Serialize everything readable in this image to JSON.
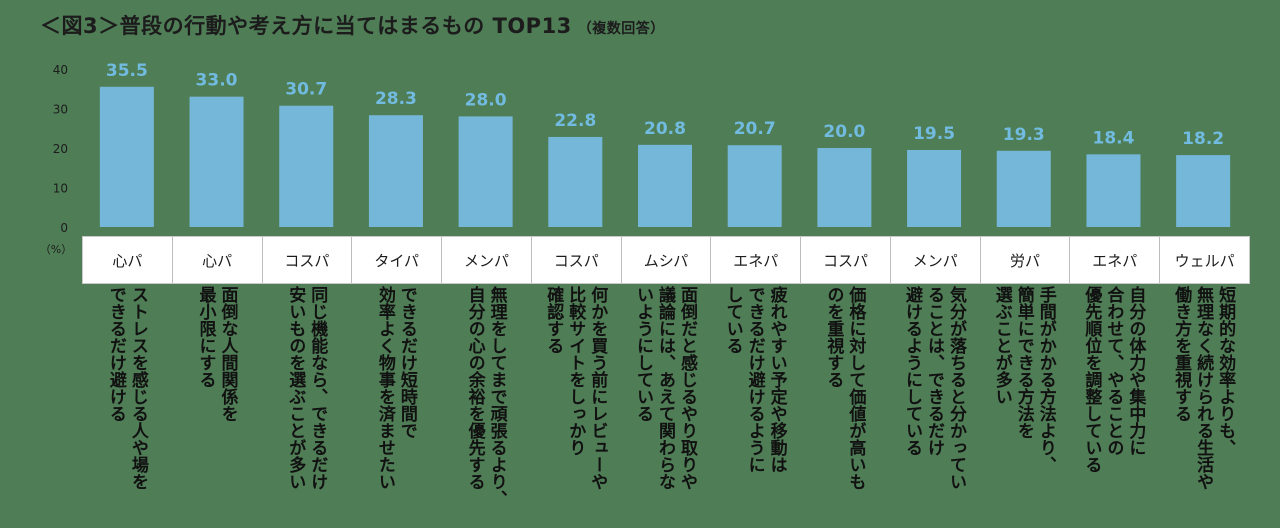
{
  "title": "＜図3＞普段の行動や考え方に当てはまるもの TOP13",
  "subtitle": "（複数回答）",
  "y_unit": "（%）",
  "colors": {
    "bar": "#75b7d9",
    "label": "#72bbe0",
    "background": "#4f7d56"
  },
  "chart_data": {
    "type": "bar",
    "ylim": [
      0,
      40
    ],
    "yticks": [
      0,
      10,
      20,
      30,
      40
    ],
    "values": [
      35.5,
      33.0,
      30.7,
      28.3,
      28.0,
      22.8,
      20.8,
      20.7,
      20.0,
      19.5,
      19.3,
      18.4,
      18.2
    ],
    "value_labels": [
      "35.5",
      "33.0",
      "30.7",
      "28.3",
      "28.0",
      "22.8",
      "20.8",
      "20.7",
      "20.0",
      "19.5",
      "19.3",
      "18.4",
      "18.2"
    ],
    "categories": [
      "心パ",
      "心パ",
      "コスパ",
      "タイパ",
      "メンパ",
      "コスパ",
      "ムシパ",
      "エネパ",
      "コスパ",
      "メンパ",
      "労パ",
      "エネパ",
      "ウェルパ"
    ],
    "descriptions": [
      "ストレスを感じる人や場を\nできるだけ避ける",
      "面倒な人間関係を\n最小限にする",
      "同じ機能なら、できるだけ\n安いものを選ぶことが多い",
      "できるだけ短時間で\n効率よく物事を済ませたい",
      "無理をしてまで頑張るより、\n自分の心の余裕を優先する",
      "何かを買う前にレビューや\n比較サイトをしっかり\n確認する",
      "面倒だと感じるやり取りや\n議論には、あえて関わらな\nいようにしている",
      "疲れやすい予定や移動は\nできるだけ避けるように\nしている",
      "価格に対して価値が高いも\nのを重視する",
      "気分が落ちると分かってい\nることは、できるだけ\n避けるようにしている",
      "手間がかかる方法より、\n簡単にできる方法を\n選ぶことが多い",
      "自分の体力や集中力に\n合わせて、やることの\n優先順位を調整している",
      "短期的な効率よりも、\n無理なく続けられる生活や\n働き方を重視する"
    ]
  }
}
